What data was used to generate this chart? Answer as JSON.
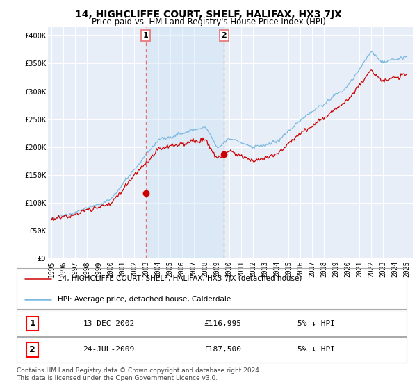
{
  "title": "14, HIGHCLIFFE COURT, SHELF, HALIFAX, HX3 7JX",
  "subtitle": "Price paid vs. HM Land Registry's House Price Index (HPI)",
  "ylabel_ticks": [
    "£0",
    "£50K",
    "£100K",
    "£150K",
    "£200K",
    "£250K",
    "£300K",
    "£350K",
    "£400K"
  ],
  "ytick_vals": [
    0,
    50000,
    100000,
    150000,
    200000,
    250000,
    300000,
    350000,
    400000
  ],
  "ylim": [
    0,
    415000
  ],
  "hpi_color": "#7ab8e0",
  "price_color": "#cc0000",
  "p1_year": 2002.95,
  "p1_price": 116995,
  "p2_year": 2009.56,
  "p2_price": 187500,
  "vline_color": "#e87070",
  "shade_color": "#ddeeff",
  "legend_entries": [
    "14, HIGHCLIFFE COURT, SHELF, HALIFAX, HX3 7JX (detached house)",
    "HPI: Average price, detached house, Calderdale"
  ],
  "table_rows": [
    [
      "1",
      "13-DEC-2002",
      "£116,995",
      "5% ↓ HPI"
    ],
    [
      "2",
      "24-JUL-2009",
      "£187,500",
      "5% ↓ HPI"
    ]
  ],
  "footnote": "Contains HM Land Registry data © Crown copyright and database right 2024.\nThis data is licensed under the Open Government Licence v3.0.",
  "bg_color": "#ffffff",
  "plot_bg_color": "#e8eef8"
}
